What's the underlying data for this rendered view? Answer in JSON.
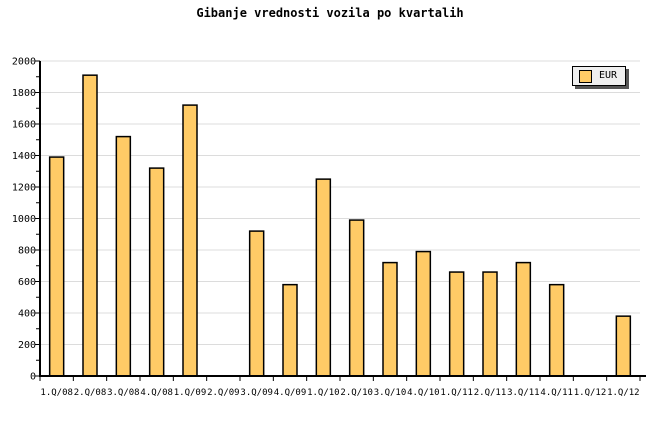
{
  "chart_data": {
    "type": "bar",
    "title": "Gibanje vrednosti vozila po kvartalih",
    "legend": [
      "EUR"
    ],
    "legend_position": "top-right",
    "categories": [
      "1.Q/08",
      "2.Q/08",
      "3.Q/08",
      "4.Q/08",
      "1.Q/09",
      "2.Q/09",
      "3.Q/09",
      "4.Q/09",
      "1.Q/10",
      "2.Q/10",
      "3.Q/10",
      "4.Q/10",
      "1.Q/11",
      "2.Q/11",
      "3.Q/11",
      "4.Q/11",
      "1.Q/12",
      "1.Q/12"
    ],
    "values": [
      1390,
      1910,
      1520,
      1320,
      1720,
      null,
      920,
      580,
      1250,
      990,
      720,
      790,
      660,
      660,
      720,
      580,
      null,
      380
    ],
    "xlabel": "",
    "ylabel": "",
    "ylim": [
      0,
      2000
    ],
    "yticks": [
      0,
      200,
      400,
      600,
      800,
      1000,
      1200,
      1400,
      1600,
      1800,
      2000
    ],
    "minor_tick_step": 100,
    "grid": "horizontal-major",
    "colors": {
      "bar_fill": "#FFCB66",
      "bar_border": "#000000",
      "grid": "#DCDCDC",
      "axis": "#000000",
      "legend_bg": "#EFEFEF",
      "legend_shadow": "#555555"
    }
  }
}
